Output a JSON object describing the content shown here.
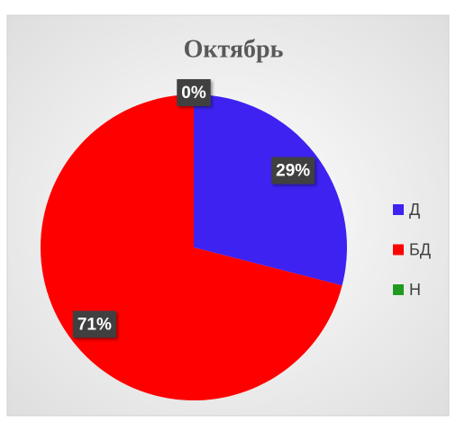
{
  "chart_data": {
    "type": "pie",
    "title": "Октябрь",
    "categories": [
      "Д",
      "БД",
      "Н"
    ],
    "values": [
      29,
      71,
      0
    ],
    "value_labels": [
      "29%",
      "71%",
      "0%"
    ],
    "colors": [
      "#3d22f2",
      "#ff0000",
      "#1f9a1f"
    ],
    "legend": "right"
  }
}
